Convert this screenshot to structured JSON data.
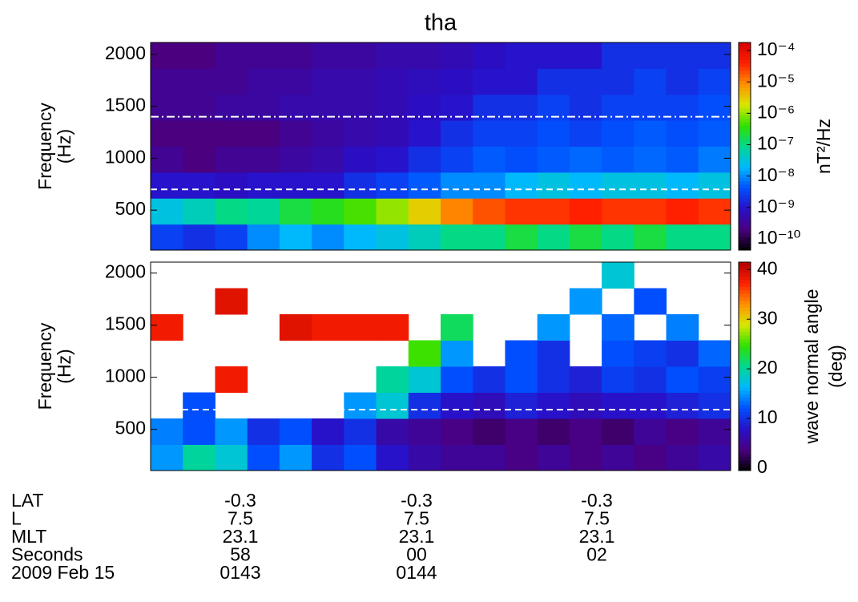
{
  "chart_data": [
    {
      "type": "heatmap",
      "title": "tha",
      "ylabel": [
        "Frequency",
        "(Hz)"
      ],
      "ylim": [
        115,
        2115
      ],
      "yticks": [
        500,
        1000,
        1500,
        2000
      ],
      "frequencies": [
        240,
        490,
        740,
        990,
        1240,
        1490,
        1740,
        1990
      ],
      "z": [
        [
          3e-09,
          2e-09,
          3e-09,
          1e-08,
          2e-08,
          1e-08,
          2e-08,
          3e-08,
          5e-08,
          1e-07,
          1e-07,
          2e-07,
          1e-07,
          2e-07,
          1e-07,
          2e-07,
          1e-07,
          1e-07
        ],
        [
          3e-08,
          5e-08,
          1e-07,
          8e-08,
          2e-07,
          3e-07,
          5e-07,
          1e-06,
          3e-06,
          1e-05,
          2e-05,
          3e-05,
          3e-05,
          4e-05,
          3e-05,
          3e-05,
          4e-05,
          3e-05
        ],
        [
          1e-09,
          1e-09,
          8e-10,
          1e-09,
          1e-09,
          1e-09,
          2e-09,
          3e-09,
          5e-09,
          1e-08,
          1e-08,
          2e-08,
          3e-08,
          2e-08,
          3e-08,
          3e-08,
          2e-08,
          3e-08
        ],
        [
          3e-10,
          2e-10,
          3e-10,
          3e-10,
          4e-10,
          5e-10,
          8e-10,
          1e-09,
          2e-09,
          3e-09,
          5e-09,
          4e-09,
          5e-09,
          6e-09,
          5e-09,
          6e-09,
          5e-09,
          8e-09
        ],
        [
          2e-10,
          2e-10,
          2e-10,
          2e-10,
          3e-10,
          4e-10,
          5e-10,
          6e-10,
          1e-09,
          2e-09,
          3e-09,
          3e-09,
          4e-09,
          3e-09,
          4e-09,
          5e-09,
          4e-09,
          5e-09
        ],
        [
          3e-10,
          3e-10,
          4e-10,
          4e-10,
          5e-10,
          5e-10,
          5e-10,
          6e-10,
          8e-10,
          1e-09,
          2e-09,
          2e-09,
          3e-09,
          2e-09,
          3e-09,
          3e-09,
          3e-09,
          4e-09
        ],
        [
          3e-10,
          3e-10,
          3e-10,
          4e-10,
          4e-10,
          5e-10,
          5e-10,
          6e-10,
          7e-10,
          8e-10,
          1e-09,
          1e-09,
          2e-09,
          2e-09,
          2e-09,
          3e-09,
          2e-09,
          3e-09
        ],
        [
          2e-10,
          2e-10,
          3e-10,
          3e-10,
          3e-10,
          4e-10,
          4e-10,
          5e-10,
          5e-10,
          6e-10,
          8e-10,
          1e-09,
          1e-09,
          1e-09,
          2e-09,
          2e-09,
          2e-09,
          2e-09
        ]
      ],
      "hlines": [
        {
          "value": 1400,
          "style": "dashdot",
          "color": "#ffffff"
        },
        {
          "value": 700,
          "style": "dashed",
          "color": "#ffffff"
        }
      ],
      "colorbar": {
        "label": [
          "nT²/Hz"
        ],
        "log": true,
        "clim": [
          4.4e-11,
          0.00018
        ],
        "ticks": [
          {
            "value": 0.0001,
            "label": "10⁻⁴"
          },
          {
            "value": 1e-05,
            "label": "10⁻⁵"
          },
          {
            "value": 1e-06,
            "label": "10⁻⁶"
          },
          {
            "value": 1e-07,
            "label": "10⁻⁷"
          },
          {
            "value": 1e-08,
            "label": "10⁻⁸"
          },
          {
            "value": 1e-09,
            "label": "10⁻⁹"
          },
          {
            "value": 1e-10,
            "label": "10⁻¹⁰"
          }
        ],
        "colormap": [
          "#000000",
          "#4a0080",
          "#2810c8",
          "#0050ff",
          "#00b8ff",
          "#00d890",
          "#30e000",
          "#d8e800",
          "#ff9000",
          "#ff2000",
          "#d80000"
        ]
      }
    },
    {
      "type": "heatmap",
      "ylabel": [
        "Frequency",
        "(Hz)"
      ],
      "ylim": [
        105,
        2105
      ],
      "yticks": [
        500,
        1000,
        1500,
        2000
      ],
      "frequencies": [
        230,
        480,
        730,
        980,
        1230,
        1480,
        1730,
        1980
      ],
      "z": [
        [
          15,
          20,
          18,
          12,
          15,
          10,
          12,
          8,
          6,
          5,
          5,
          4,
          5,
          4,
          5,
          4,
          5,
          6
        ],
        [
          14,
          12,
          15,
          10,
          12,
          8,
          10,
          6,
          5,
          4,
          3,
          4,
          3,
          4,
          3,
          5,
          4,
          5
        ],
        [
          null,
          12,
          null,
          null,
          null,
          null,
          15,
          18,
          10,
          8,
          7,
          9,
          8,
          7,
          8,
          8,
          9,
          10
        ],
        [
          null,
          null,
          38,
          null,
          null,
          null,
          null,
          20,
          18,
          12,
          10,
          12,
          10,
          9,
          11,
          10,
          12,
          11
        ],
        [
          null,
          null,
          null,
          null,
          null,
          null,
          null,
          null,
          25,
          15,
          null,
          12,
          10,
          null,
          12,
          11,
          10,
          13
        ],
        [
          38,
          null,
          null,
          null,
          39,
          38,
          38,
          38,
          null,
          22,
          null,
          null,
          15,
          null,
          13,
          null,
          14,
          null
        ],
        [
          null,
          null,
          39,
          null,
          null,
          null,
          null,
          null,
          null,
          null,
          null,
          null,
          null,
          15,
          null,
          12,
          null,
          null
        ],
        [
          null,
          null,
          null,
          null,
          null,
          null,
          null,
          null,
          null,
          null,
          null,
          null,
          null,
          null,
          18,
          null,
          null,
          null
        ]
      ],
      "hlines": [
        {
          "value": 690,
          "style": "dashed",
          "color": "#ffffff"
        }
      ],
      "colorbar": {
        "label": [
          "wave normal angle",
          "(deg)"
        ],
        "log": false,
        "clim": [
          -0.5,
          41.5
        ],
        "ticks": [
          0,
          10,
          20,
          30,
          40
        ],
        "colormap": [
          "#000000",
          "#4a0080",
          "#2810c8",
          "#0050ff",
          "#00b8ff",
          "#00d890",
          "#30e000",
          "#d8e800",
          "#ff9000",
          "#ff2000",
          "#b00000"
        ]
      }
    }
  ],
  "ephemeris": {
    "rows": [
      {
        "label": "LAT",
        "values": [
          "-0.3",
          "-0.3",
          "-0.3"
        ]
      },
      {
        "label": "L",
        "values": [
          "7.5",
          "7.5",
          "7.5"
        ]
      },
      {
        "label": "MLT",
        "values": [
          "23.1",
          "23.1",
          "23.1"
        ]
      },
      {
        "label": "Seconds",
        "values": [
          "58",
          "00",
          "02"
        ]
      },
      {
        "label": "2009 Feb 15",
        "values": [
          "0143",
          "0144",
          null
        ]
      }
    ]
  }
}
